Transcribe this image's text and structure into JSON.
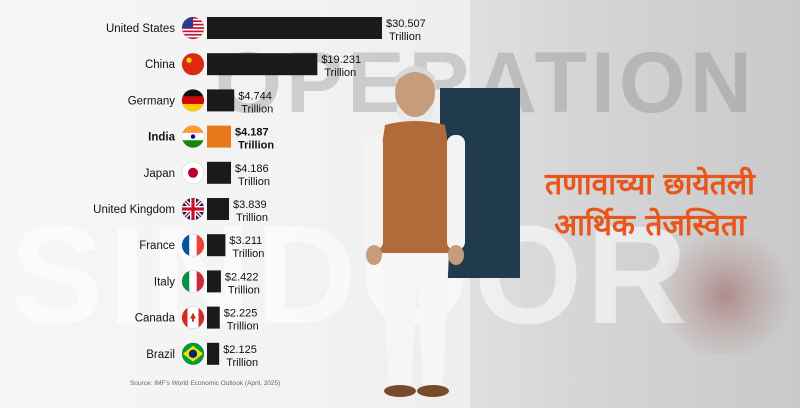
{
  "background": {
    "word_top": "OPERATION",
    "word_bottom": "SINDOOR"
  },
  "headline": {
    "line1": "तणावाच्या छायेतली",
    "line2": "आर्थिक तेजस्विता",
    "color": "#e8561b"
  },
  "source": "Source: IMF's World Economic Outlook (April, 2025)",
  "chart_data": {
    "type": "bar",
    "orientation": "horizontal",
    "unit": "Trillion",
    "bar_color": "#1a1a1a",
    "highlight_color": "#e87a1d",
    "highlight_category": "India",
    "categories": [
      "United States",
      "China",
      "Germany",
      "India",
      "Japan",
      "United Kingdom",
      "France",
      "Italy",
      "Canada",
      "Brazil"
    ],
    "values": [
      30.507,
      19.231,
      4.744,
      4.187,
      4.186,
      3.839,
      3.211,
      2.422,
      2.225,
      2.125
    ],
    "value_labels": [
      "$30.507",
      "$19.231",
      "$4.744",
      "$4.187",
      "$4.186",
      "$3.839",
      "$3.211",
      "$2.422",
      "$2.225",
      "$2.125"
    ],
    "flags": [
      "us-flag-icon",
      "china-flag-icon",
      "germany-flag-icon",
      "india-flag-icon",
      "japan-flag-icon",
      "uk-flag-icon",
      "france-flag-icon",
      "italy-flag-icon",
      "canada-flag-icon",
      "brazil-flag-icon"
    ],
    "title": "",
    "xlabel": "",
    "ylabel": ""
  }
}
